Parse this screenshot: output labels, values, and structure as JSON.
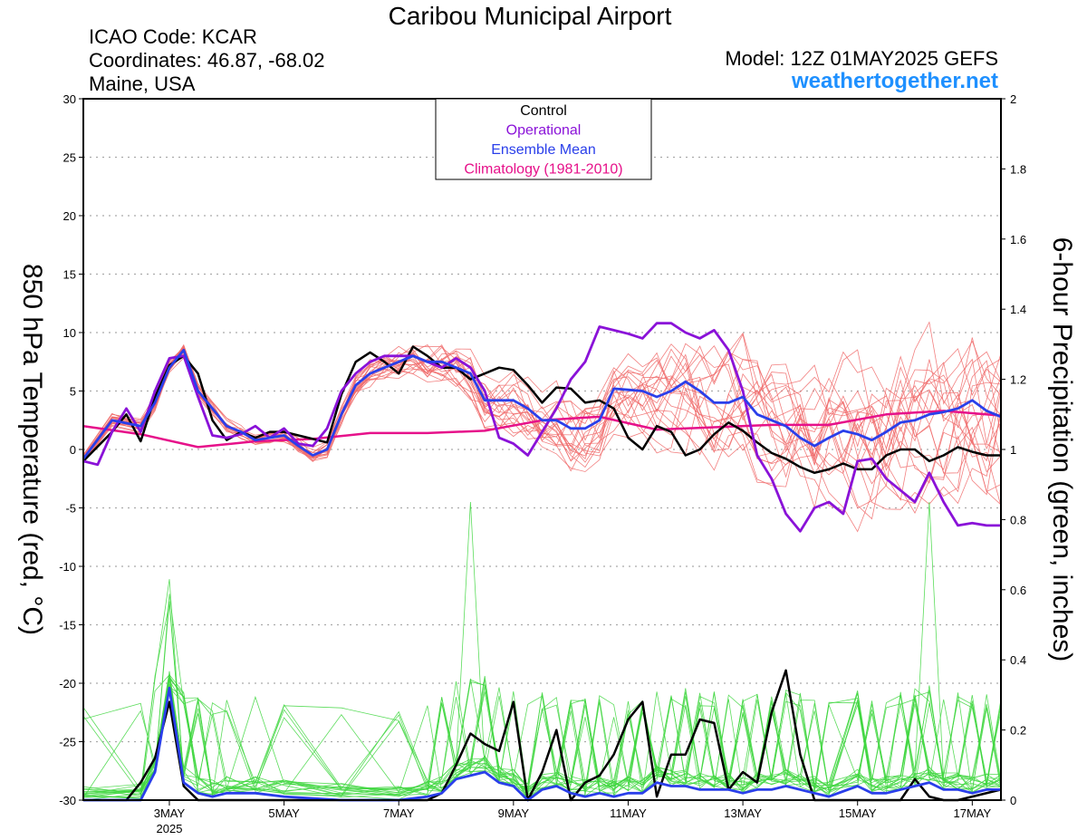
{
  "header": {
    "title": "Caribou Municipal Airport",
    "icao": "ICAO Code: KCAR",
    "coordinates": "Coordinates: 46.87, -68.02",
    "region": "Maine, USA",
    "model": "Model: 12Z 01MAY2025 GEFS",
    "brand": "weathertogether.net"
  },
  "chart_data": {
    "type": "line",
    "x_unit": "day of May 2025 (fractional)",
    "xlim": [
      1.5,
      17.5
    ],
    "ylabel_left": "850 hPa Temperature (red, °C)",
    "ylabel_right": "6-hour Precipitation (green, inches)",
    "ylim_left": [
      -30,
      30
    ],
    "ylim_right": [
      0,
      2
    ],
    "yticks_left": [
      30,
      25,
      20,
      15,
      10,
      5,
      0,
      -5,
      -10,
      -15,
      -20,
      -25,
      -30
    ],
    "yticks_right": [
      "2",
      "1.8",
      "1.6",
      "1.4",
      "1.2",
      "1",
      "0.8",
      "0.6",
      "0.4",
      "0.2",
      "0"
    ],
    "yticks_right_values": [
      2,
      1.8,
      1.6,
      1.4,
      1.2,
      1,
      0.8,
      0.6,
      0.4,
      0.2,
      0
    ],
    "xticks": [
      {
        "x": 3,
        "label": "3MAY",
        "sublabel": "2025"
      },
      {
        "x": 5,
        "label": "5MAY",
        "sublabel": ""
      },
      {
        "x": 7,
        "label": "7MAY",
        "sublabel": ""
      },
      {
        "x": 9,
        "label": "9MAY",
        "sublabel": ""
      },
      {
        "x": 11,
        "label": "11MAY",
        "sublabel": ""
      },
      {
        "x": 13,
        "label": "13MAY",
        "sublabel": ""
      },
      {
        "x": 15,
        "label": "15MAY",
        "sublabel": ""
      },
      {
        "x": 17,
        "label": "17MAY",
        "sublabel": ""
      }
    ],
    "grid": "dotted horizontal",
    "legend": {
      "placement": "top-center",
      "entries": [
        {
          "name": "Control",
          "color": "#000000"
        },
        {
          "name": "Operational",
          "color": "#8a12d8"
        },
        {
          "name": "Ensemble Mean",
          "color": "#2a3fea"
        },
        {
          "name": "Climatology (1981-2010)",
          "color": "#e6118a"
        }
      ]
    },
    "colors": {
      "control": "#000000",
      "operational": "#8a12d8",
      "ensemble_mean": "#2a3fea",
      "climatology": "#e6118a",
      "members_temp": "#f06a6a",
      "members_precip": "#3ed63e"
    },
    "series": [
      {
        "key": "climatology",
        "axis": "left",
        "x": [
          1.5,
          2.5,
          3.5,
          4.5,
          5.5,
          6.5,
          7.5,
          8.5,
          9.5,
          10.5,
          11.5,
          12.5,
          13.5,
          14.5,
          15.5,
          16.5,
          17.5
        ],
        "y": [
          2.0,
          1.3,
          0.2,
          0.7,
          0.9,
          1.4,
          1.4,
          1.6,
          2.5,
          2.8,
          1.7,
          1.9,
          2.1,
          2.1,
          3.0,
          3.3,
          2.9
        ]
      },
      {
        "key": "control",
        "axis": "left",
        "x": [
          1.5,
          2.0,
          2.25,
          2.5,
          2.75,
          3.0,
          3.25,
          3.5,
          3.75,
          4.0,
          4.25,
          4.5,
          4.75,
          5.0,
          5.25,
          5.5,
          5.75,
          6.0,
          6.25,
          6.5,
          6.75,
          7.0,
          7.25,
          7.5,
          7.75,
          8.0,
          8.25,
          8.5,
          8.75,
          9.0,
          9.25,
          9.5,
          9.75,
          10.0,
          10.25,
          10.5,
          10.75,
          11.0,
          11.25,
          11.5,
          11.75,
          12.0,
          12.25,
          12.5,
          12.75,
          13.0,
          13.25,
          13.5,
          13.75,
          14.0,
          14.25,
          14.5,
          14.75,
          15.0,
          15.25,
          15.5,
          15.75,
          16.0,
          16.25,
          16.5,
          16.75,
          17.0,
          17.25,
          17.5
        ],
        "y": [
          -1.0,
          1.5,
          3.0,
          0.7,
          4.5,
          7.2,
          8.0,
          6.5,
          2.5,
          0.8,
          1.5,
          1.0,
          1.5,
          1.5,
          1.2,
          0.9,
          0.6,
          4.7,
          7.5,
          8.3,
          7.5,
          6.5,
          8.8,
          8.0,
          7.0,
          7.0,
          6.0,
          6.5,
          7.0,
          6.8,
          5.5,
          4.0,
          5.3,
          5.2,
          4.0,
          4.2,
          3.5,
          1.0,
          0.0,
          2.0,
          1.5,
          -0.5,
          0.0,
          1.3,
          2.3,
          1.6,
          0.6,
          -0.3,
          -0.8,
          -1.5,
          -2.0,
          -1.7,
          -1.2,
          -1.7,
          -1.7,
          -0.5,
          0.0,
          0.0,
          -1.0,
          -0.5,
          0.2,
          -0.2,
          -0.5,
          -0.5
        ]
      },
      {
        "key": "operational",
        "axis": "left",
        "x": [
          1.5,
          1.75,
          2.0,
          2.25,
          2.5,
          2.75,
          3.0,
          3.25,
          3.5,
          3.75,
          4.0,
          4.25,
          4.5,
          4.75,
          5.0,
          5.25,
          5.5,
          5.75,
          6.0,
          6.25,
          6.5,
          6.75,
          7.0,
          7.25,
          7.5,
          7.75,
          8.0,
          8.25,
          8.5,
          8.75,
          9.0,
          9.25,
          9.5,
          9.75,
          10.0,
          10.25,
          10.5,
          10.75,
          11.0,
          11.25,
          11.5,
          11.75,
          12.0,
          12.25,
          12.5,
          12.75,
          13.0,
          13.25,
          13.5,
          13.75,
          14.0,
          14.25,
          14.5,
          14.75,
          15.0,
          15.25,
          15.5,
          15.75,
          16.0,
          16.25,
          16.5,
          16.75,
          17.0,
          17.25,
          17.5
        ],
        "y": [
          -1.0,
          -1.3,
          1.5,
          3.5,
          1.5,
          5.0,
          7.8,
          8.0,
          4.5,
          1.2,
          1.0,
          1.3,
          2.0,
          1.0,
          1.8,
          0.5,
          0.3,
          1.8,
          5.0,
          6.5,
          7.5,
          8.0,
          8.0,
          8.0,
          7.5,
          7.0,
          7.8,
          7.0,
          5.0,
          1.0,
          0.5,
          -0.5,
          1.5,
          3.5,
          6.0,
          7.5,
          10.5,
          10.2,
          9.9,
          9.5,
          10.8,
          10.8,
          10.0,
          9.5,
          10.2,
          8.5,
          5.0,
          -0.5,
          -2.5,
          -5.5,
          -7.0,
          -5.0,
          -4.5,
          -5.5,
          -1.0,
          -0.8,
          -2.5,
          -3.5,
          -4.5,
          -2.0,
          -4.5,
          -6.5,
          -6.3,
          -6.5,
          -6.5
        ]
      },
      {
        "key": "ensemble_mean",
        "axis": "left",
        "x": [
          1.5,
          2.0,
          2.5,
          2.75,
          3.0,
          3.25,
          3.5,
          3.75,
          4.0,
          4.25,
          4.5,
          4.75,
          5.0,
          5.25,
          5.5,
          5.75,
          6.0,
          6.25,
          6.5,
          6.75,
          7.0,
          7.25,
          7.5,
          7.75,
          8.0,
          8.25,
          8.5,
          8.75,
          9.0,
          9.25,
          9.5,
          9.75,
          10.0,
          10.25,
          10.5,
          10.75,
          11.0,
          11.25,
          11.5,
          11.75,
          12.0,
          12.25,
          12.5,
          12.75,
          13.0,
          13.25,
          13.5,
          13.75,
          14.0,
          14.25,
          14.5,
          14.75,
          15.0,
          15.25,
          15.5,
          15.75,
          16.0,
          16.25,
          16.5,
          16.75,
          17.0,
          17.25,
          17.5
        ],
        "y": [
          -0.8,
          2.5,
          2.0,
          4.0,
          7.0,
          8.5,
          5.0,
          3.5,
          2.0,
          1.5,
          0.8,
          1.0,
          1.2,
          0.3,
          -0.5,
          0.0,
          3.0,
          5.5,
          6.5,
          7.0,
          7.5,
          8.0,
          7.5,
          7.5,
          7.0,
          6.5,
          4.2,
          4.2,
          4.2,
          3.5,
          2.5,
          2.5,
          1.8,
          1.8,
          2.5,
          5.2,
          5.1,
          5.0,
          4.5,
          5.0,
          5.8,
          5.0,
          4.0,
          4.0,
          4.5,
          3.0,
          2.5,
          2.0,
          1.0,
          0.3,
          1.0,
          1.6,
          1.3,
          0.8,
          1.5,
          2.3,
          2.5,
          3.0,
          3.2,
          3.5,
          4.2,
          3.3,
          2.8
        ]
      },
      {
        "key": "control_precip",
        "axis": "right",
        "x": [
          1.5,
          2.25,
          2.5,
          2.75,
          3.0,
          3.25,
          3.5,
          3.75,
          4.0,
          4.5,
          5.0,
          6.0,
          7.0,
          7.5,
          7.75,
          8.0,
          8.25,
          8.5,
          8.75,
          9.0,
          9.25,
          9.5,
          9.75,
          10.0,
          10.25,
          10.5,
          10.75,
          11.0,
          11.25,
          11.5,
          11.75,
          12.0,
          12.25,
          12.5,
          12.75,
          13.0,
          13.25,
          13.5,
          13.75,
          14.0,
          14.25,
          14.5,
          15.0,
          15.5,
          15.75,
          16.0,
          16.25,
          16.5,
          16.75,
          17.0,
          17.5
        ],
        "y": [
          0,
          0,
          0.05,
          0.12,
          0.28,
          0.04,
          0.0,
          0.0,
          0.0,
          0.0,
          0.0,
          0.0,
          0.0,
          0.0,
          0.02,
          0.1,
          0.19,
          0.16,
          0.14,
          0.28,
          0.0,
          0.08,
          0.2,
          0.0,
          0.05,
          0.07,
          0.13,
          0.23,
          0.28,
          0.01,
          0.13,
          0.13,
          0.23,
          0.22,
          0.03,
          0.08,
          0.05,
          0.25,
          0.37,
          0.13,
          0.0,
          0.0,
          0.0,
          0.0,
          0.0,
          0.06,
          0.01,
          0.0,
          0.0,
          0.01,
          0.03
        ]
      },
      {
        "key": "mean_precip",
        "axis": "right",
        "x": [
          1.5,
          2.5,
          2.75,
          3.0,
          3.25,
          3.5,
          3.75,
          4.0,
          4.5,
          5.0,
          6.0,
          7.0,
          7.5,
          7.75,
          8.0,
          8.25,
          8.5,
          8.75,
          9.0,
          9.25,
          9.5,
          9.75,
          10.0,
          10.25,
          10.5,
          10.75,
          11.0,
          11.25,
          11.5,
          11.75,
          12.0,
          12.25,
          12.5,
          12.75,
          13.0,
          13.25,
          13.5,
          13.75,
          14.0,
          14.25,
          14.5,
          15.0,
          15.25,
          15.5,
          15.75,
          16.0,
          16.25,
          16.5,
          16.75,
          17.0,
          17.25,
          17.5
        ],
        "y": [
          0,
          0,
          0.08,
          0.32,
          0.05,
          0.02,
          0.01,
          0.02,
          0.02,
          0.01,
          0.0,
          0.0,
          0.01,
          0.02,
          0.06,
          0.07,
          0.08,
          0.05,
          0.04,
          0.0,
          0.03,
          0.04,
          0.02,
          0.01,
          0.02,
          0.01,
          0.02,
          0.02,
          0.05,
          0.04,
          0.04,
          0.03,
          0.03,
          0.03,
          0.02,
          0.03,
          0.03,
          0.04,
          0.03,
          0.02,
          0.01,
          0.04,
          0.02,
          0.02,
          0.03,
          0.04,
          0.05,
          0.03,
          0.03,
          0.02,
          0.03,
          0.03
        ]
      }
    ],
    "members_temp_summary": "about 20 thin red ensemble member lines spreading roughly -12 to +15 °C around the mean",
    "members_precip_summary": "about 20 thin green ensemble member lines, mostly below 0.4 in with spikes near 0.62 (3 May), 0.85 (8 May) and 0.85 (16 May)"
  }
}
